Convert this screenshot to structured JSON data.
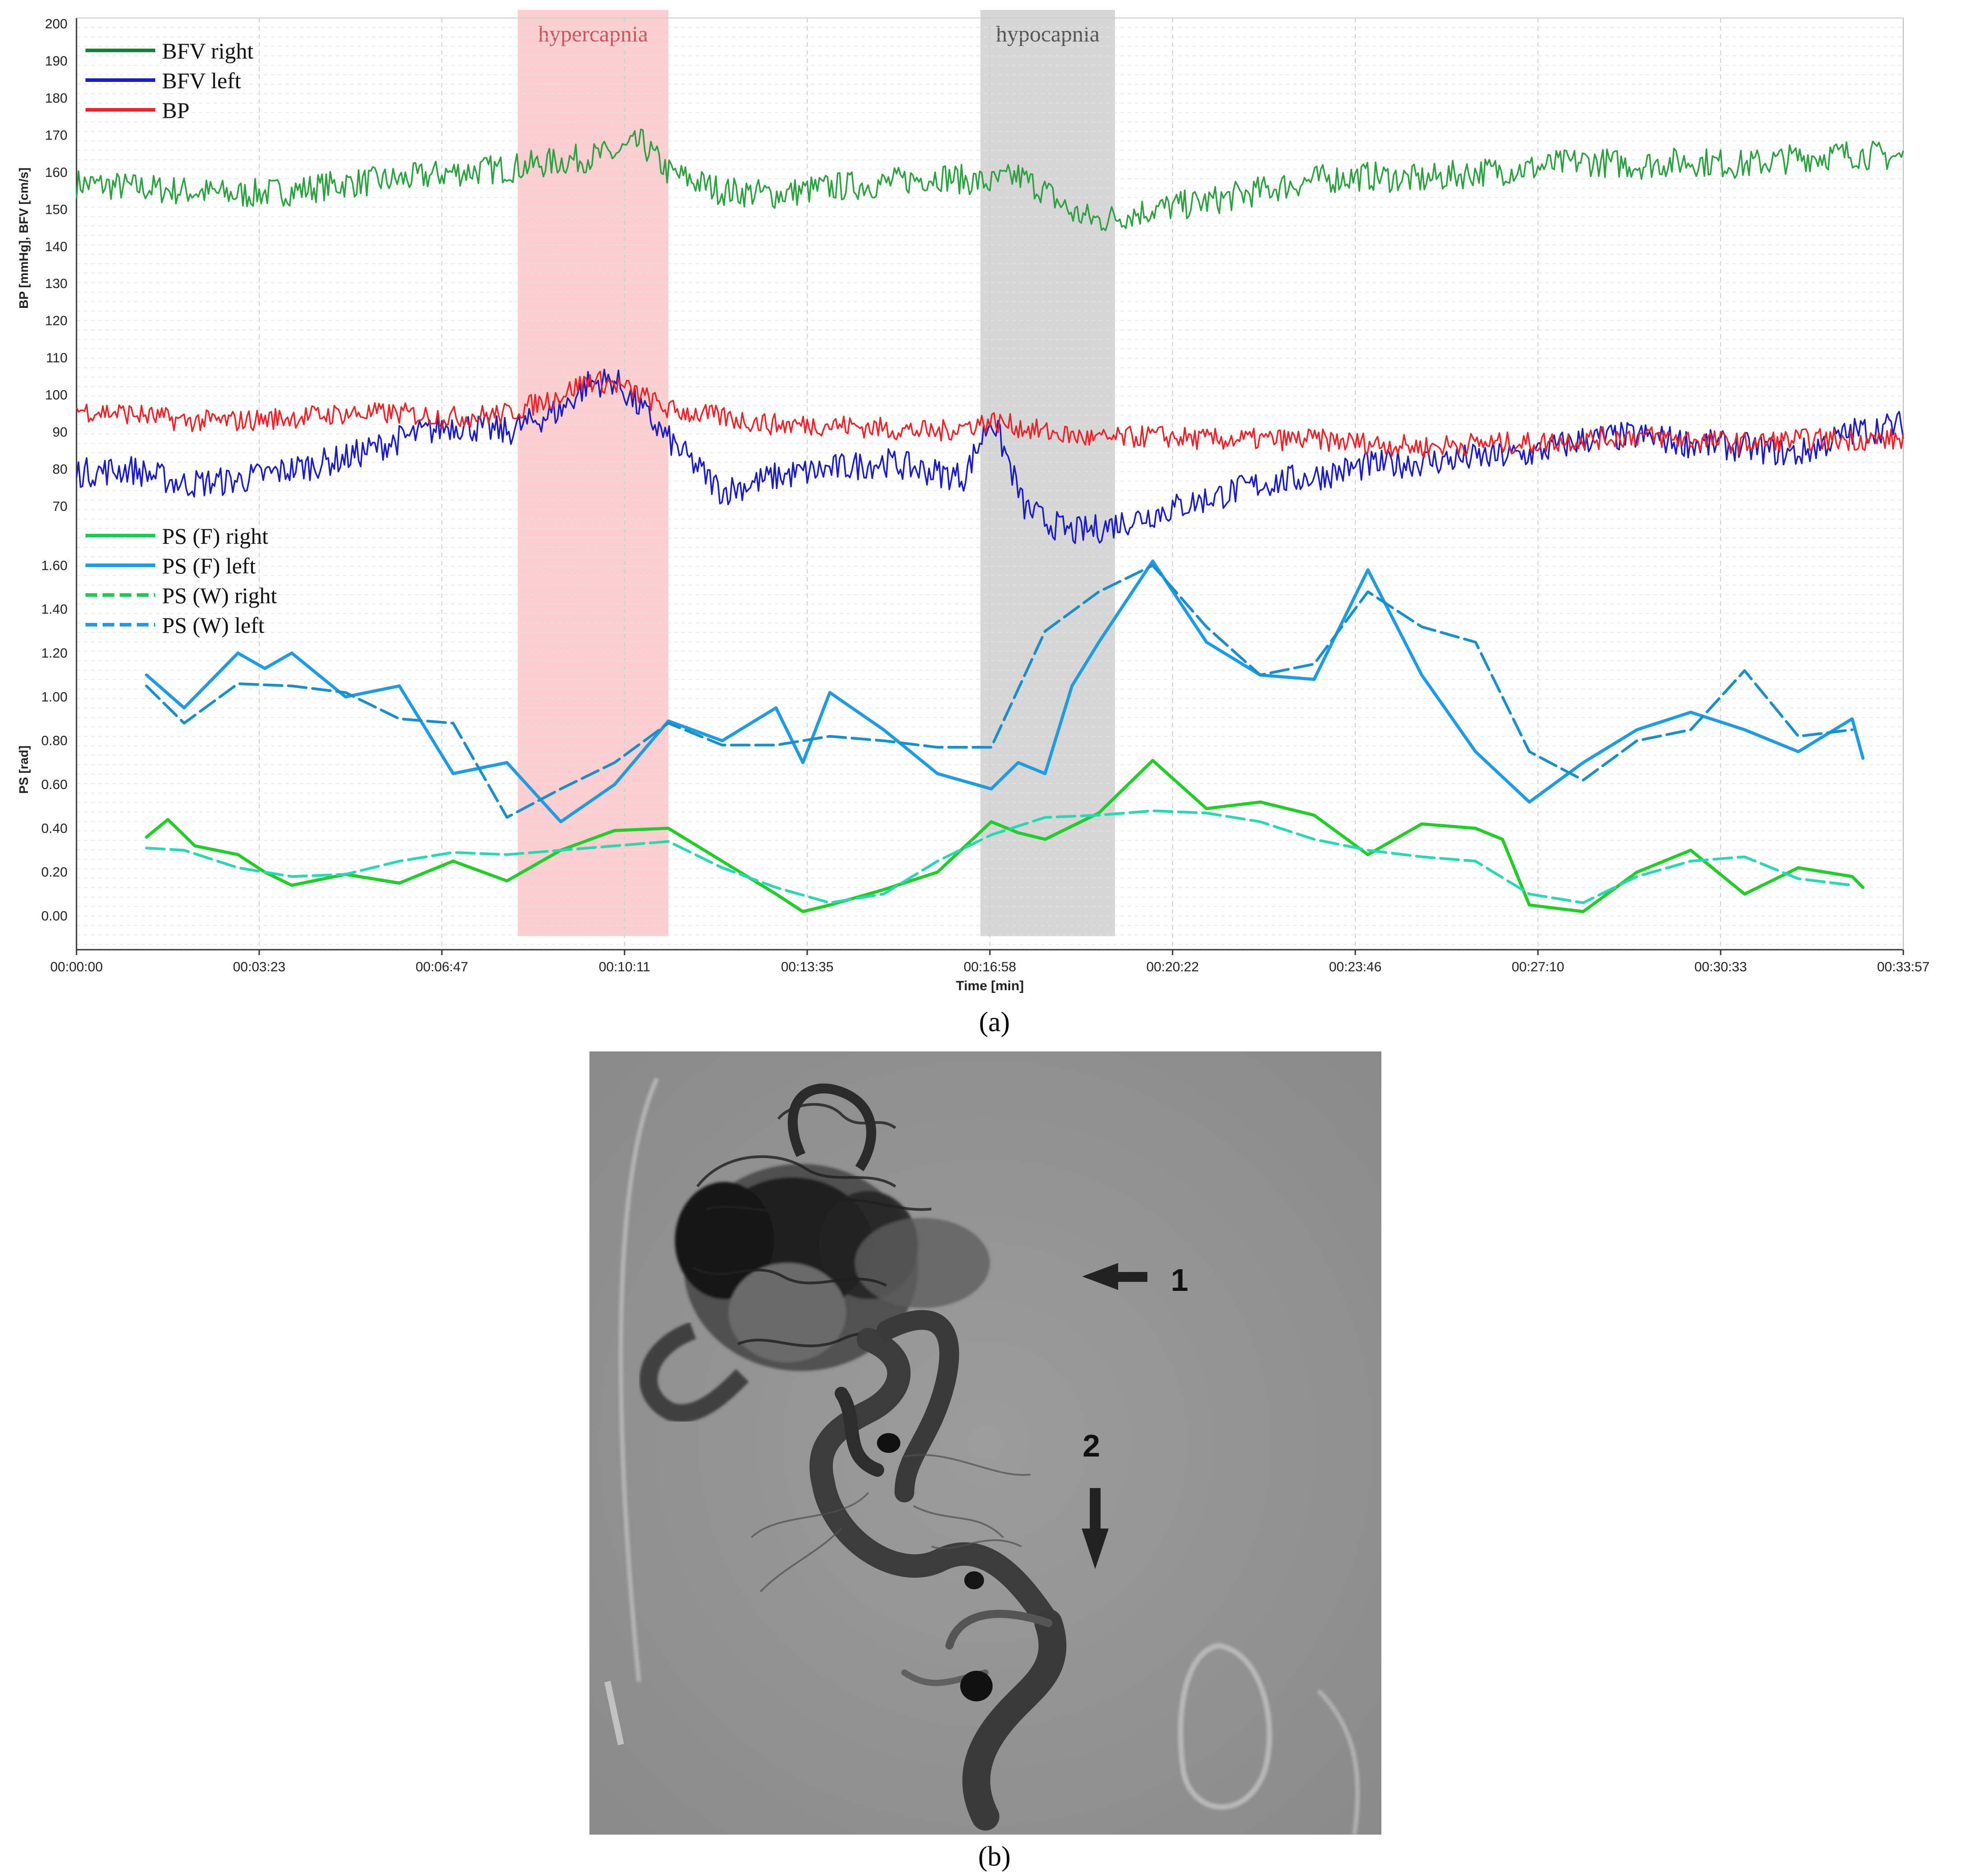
{
  "chart_data": {
    "type": "line",
    "time_ticks": [
      "00:00:00",
      "00:03:23",
      "00:06:47",
      "00:10:11",
      "00:13:35",
      "00:16:58",
      "00:20:22",
      "00:23:46",
      "00:27:10",
      "00:30:33",
      "00:33:57"
    ],
    "xlim_min": [
      0,
      33.95
    ],
    "xlabel": "Time [min]",
    "top_panel": {
      "ylabel": "BP [mmHg], BFV [cm/s]",
      "ylim": [
        70,
        200
      ],
      "yticks": [
        70,
        80,
        90,
        100,
        110,
        120,
        130,
        140,
        150,
        160,
        170,
        180,
        190,
        200
      ],
      "series": [
        {
          "name": "BFV right",
          "color": "#2ea043",
          "legend_color": "#1a7f37",
          "x": [
            0,
            1,
            2,
            3,
            4,
            5,
            6,
            7,
            8,
            9,
            10,
            10.5,
            11,
            12,
            13,
            14,
            15,
            16,
            16.5,
            17,
            17.5,
            18,
            18.5,
            19,
            20,
            21,
            22,
            23,
            24,
            25,
            26,
            27,
            28,
            29,
            30,
            31,
            32,
            33,
            33.95
          ],
          "y": [
            157,
            156,
            155,
            154,
            155,
            157,
            158,
            160,
            161,
            163,
            165,
            168,
            160,
            155,
            154,
            156,
            157,
            159,
            158,
            157,
            159,
            155,
            149,
            147,
            150,
            152,
            155,
            158,
            159,
            158,
            160,
            161,
            163,
            162,
            163,
            162,
            164,
            165,
            164
          ]
        },
        {
          "name": "BFV left",
          "color": "#1d1dbf",
          "legend_color": "#1d1dbf",
          "x": [
            0,
            1,
            2,
            3,
            4,
            5,
            6,
            7,
            8,
            9,
            9.5,
            10,
            10.5,
            11,
            12,
            13,
            14,
            15,
            16,
            16.5,
            17,
            17.3,
            17.6,
            18,
            18.5,
            19,
            20,
            21,
            22,
            23,
            24,
            25,
            26,
            27,
            28,
            29,
            30,
            31,
            32,
            33,
            33.95
          ],
          "y": [
            79,
            80,
            76,
            77,
            80,
            83,
            88,
            92,
            90,
            96,
            103,
            104,
            96,
            88,
            74,
            78,
            80,
            82,
            79,
            78,
            94,
            83,
            70,
            66,
            63,
            64,
            68,
            72,
            76,
            78,
            81,
            82,
            83,
            84,
            88,
            89,
            87,
            86,
            84,
            90,
            92
          ]
        },
        {
          "name": "BP",
          "color": "#e8262d",
          "legend_color": "#e8262d",
          "x": [
            0,
            1,
            2,
            3,
            4,
            5,
            6,
            7,
            8,
            9,
            9.5,
            10,
            10.5,
            11,
            12,
            13,
            14,
            15,
            16,
            17,
            18,
            19,
            20,
            21,
            22,
            23,
            24,
            25,
            26,
            27,
            28,
            29,
            30,
            31,
            32,
            33,
            33.95
          ],
          "y": [
            96,
            95,
            93,
            93,
            94,
            95,
            95,
            94,
            95,
            100,
            104,
            103,
            100,
            96,
            94,
            92,
            92,
            91,
            90,
            93,
            90,
            88,
            89,
            88,
            88,
            88,
            87,
            86,
            87,
            87,
            88,
            89,
            88,
            87,
            88,
            88,
            88
          ]
        }
      ]
    },
    "bottom_panel": {
      "ylabel": "PS [rad]",
      "ylim": [
        -0.15,
        1.65
      ],
      "yticks": [
        0.0,
        0.2,
        0.4,
        0.6,
        0.8,
        1.0,
        1.2,
        1.4,
        1.6
      ],
      "ytick_labels": [
        "0.00",
        "0.20",
        "0.40",
        "0.60",
        "0.80",
        "1.00",
        "1.20",
        "1.40",
        "1.60"
      ],
      "series": [
        {
          "name": "PS (F) right",
          "color": "#22cc2a",
          "legend_color": "#22c55e",
          "dash": false,
          "x": [
            1.3,
            1.7,
            2.2,
            3,
            3.5,
            4,
            5,
            6,
            7,
            8,
            9,
            10,
            11,
            12,
            13,
            13.5,
            14,
            15,
            16,
            17,
            17.5,
            18,
            19,
            20,
            21,
            22,
            23,
            24,
            25,
            26,
            26.5,
            27,
            28,
            29,
            30,
            31,
            32,
            33,
            33.2
          ],
          "y": [
            0.36,
            0.44,
            0.32,
            0.28,
            0.2,
            0.14,
            0.19,
            0.15,
            0.25,
            0.16,
            0.3,
            0.39,
            0.4,
            0.25,
            0.1,
            0.02,
            0.05,
            0.12,
            0.2,
            0.43,
            0.38,
            0.35,
            0.47,
            0.71,
            0.49,
            0.52,
            0.46,
            0.28,
            0.42,
            0.4,
            0.35,
            0.05,
            0.02,
            0.2,
            0.3,
            0.1,
            0.22,
            0.18,
            0.13
          ]
        },
        {
          "name": "PS (F) left",
          "color": "#1f9be3",
          "legend_color": "#1f9be3",
          "dash": false,
          "x": [
            1.3,
            2,
            3,
            3.5,
            4,
            5,
            6,
            7,
            8,
            9,
            10,
            11,
            12,
            13,
            13.5,
            14,
            15,
            16,
            17,
            17.5,
            18,
            18.5,
            19,
            20,
            21,
            22,
            23,
            24,
            25,
            26,
            27,
            28,
            29,
            30,
            31,
            32,
            33,
            33.2
          ],
          "y": [
            1.1,
            0.95,
            1.2,
            1.13,
            1.2,
            1.0,
            1.05,
            0.65,
            0.7,
            0.43,
            0.6,
            0.89,
            0.8,
            0.95,
            0.7,
            1.02,
            0.85,
            0.65,
            0.58,
            0.7,
            0.65,
            1.05,
            1.25,
            1.62,
            1.25,
            1.1,
            1.08,
            1.58,
            1.1,
            0.75,
            0.52,
            0.7,
            0.85,
            0.93,
            0.85,
            0.75,
            0.9,
            0.72
          ]
        },
        {
          "name": "PS (W) right",
          "color": "#2bd6b3",
          "legend_color": "#22c55e",
          "dash": true,
          "x": [
            1.3,
            2,
            3,
            4,
            5,
            6,
            7,
            8,
            9,
            10,
            11,
            12,
            13,
            14,
            15,
            16,
            17,
            18,
            19,
            20,
            21,
            22,
            23,
            24,
            25,
            26,
            27,
            28,
            29,
            30,
            31,
            32,
            33
          ],
          "y": [
            0.31,
            0.3,
            0.22,
            0.18,
            0.19,
            0.25,
            0.29,
            0.28,
            0.3,
            0.32,
            0.34,
            0.22,
            0.13,
            0.06,
            0.1,
            0.25,
            0.37,
            0.45,
            0.46,
            0.48,
            0.47,
            0.43,
            0.35,
            0.3,
            0.27,
            0.25,
            0.1,
            0.06,
            0.18,
            0.25,
            0.27,
            0.17,
            0.14
          ]
        },
        {
          "name": "PS (W) left",
          "color": "#1a8ec9",
          "legend_color": "#1f9be3",
          "dash": true,
          "x": [
            1.3,
            2,
            3,
            4,
            5,
            6,
            7,
            8,
            9,
            10,
            11,
            12,
            13,
            14,
            15,
            16,
            17,
            18,
            19,
            20,
            21,
            22,
            23,
            24,
            25,
            26,
            27,
            28,
            29,
            30,
            31,
            32,
            33
          ],
          "y": [
            1.05,
            0.88,
            1.06,
            1.05,
            1.02,
            0.9,
            0.88,
            0.45,
            0.58,
            0.7,
            0.88,
            0.78,
            0.78,
            0.82,
            0.8,
            0.77,
            0.77,
            1.3,
            1.48,
            1.6,
            1.32,
            1.1,
            1.15,
            1.48,
            1.32,
            1.25,
            0.75,
            0.62,
            0.8,
            0.85,
            1.12,
            0.82,
            0.85
          ]
        }
      ]
    },
    "shaded_regions": [
      {
        "label": "hypercapnia",
        "x": [
          8.2,
          11.0
        ],
        "color": "#f7a7a7",
        "label_color": "#c9545d"
      },
      {
        "label": "hypocapnia",
        "x": [
          16.8,
          19.3
        ],
        "color": "#b5b5b5",
        "label_color": "#555555"
      }
    ],
    "grid": true,
    "legend_position": "top-left"
  },
  "panel_labels": {
    "a": "(a)",
    "b": "(b)"
  },
  "angiogram": {
    "arrow_1_label": "1",
    "arrow_2_label": "2"
  }
}
